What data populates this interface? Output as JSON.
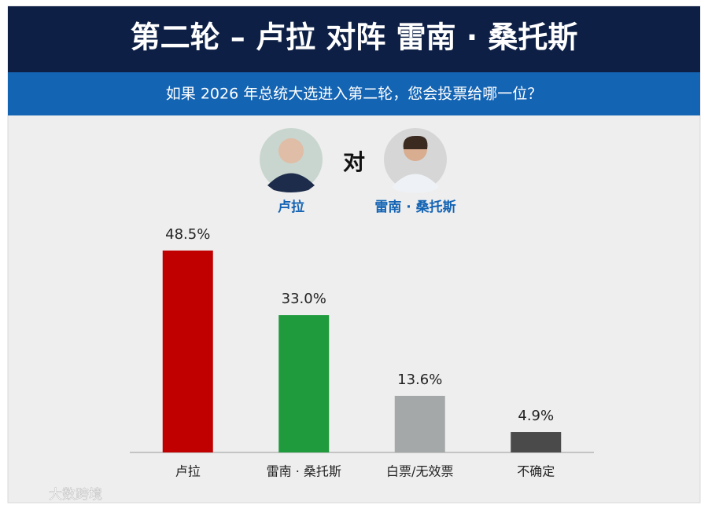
{
  "chart_data": {
    "type": "bar",
    "title": "第二轮 – 卢拉 对阵 雷南 · 桑托斯",
    "subtitle": "如果 2026 年总统大选进入第二轮，您会投票给哪一位？",
    "versus": "对",
    "candidates": [
      "卢拉",
      "雷南 · 桑托斯"
    ],
    "categories": [
      "卢拉",
      "雷南 · 桑托斯",
      "白票/无效票",
      "不确定"
    ],
    "values": [
      48.5,
      33.0,
      13.6,
      4.9
    ],
    "value_labels": [
      "48.5%",
      "33.0%",
      "13.6%",
      "4.9%"
    ],
    "colors": [
      "#c00000",
      "#1f9a3c",
      "#a5a8a8",
      "#4a4a4a"
    ],
    "watermark": "大数跨境"
  }
}
